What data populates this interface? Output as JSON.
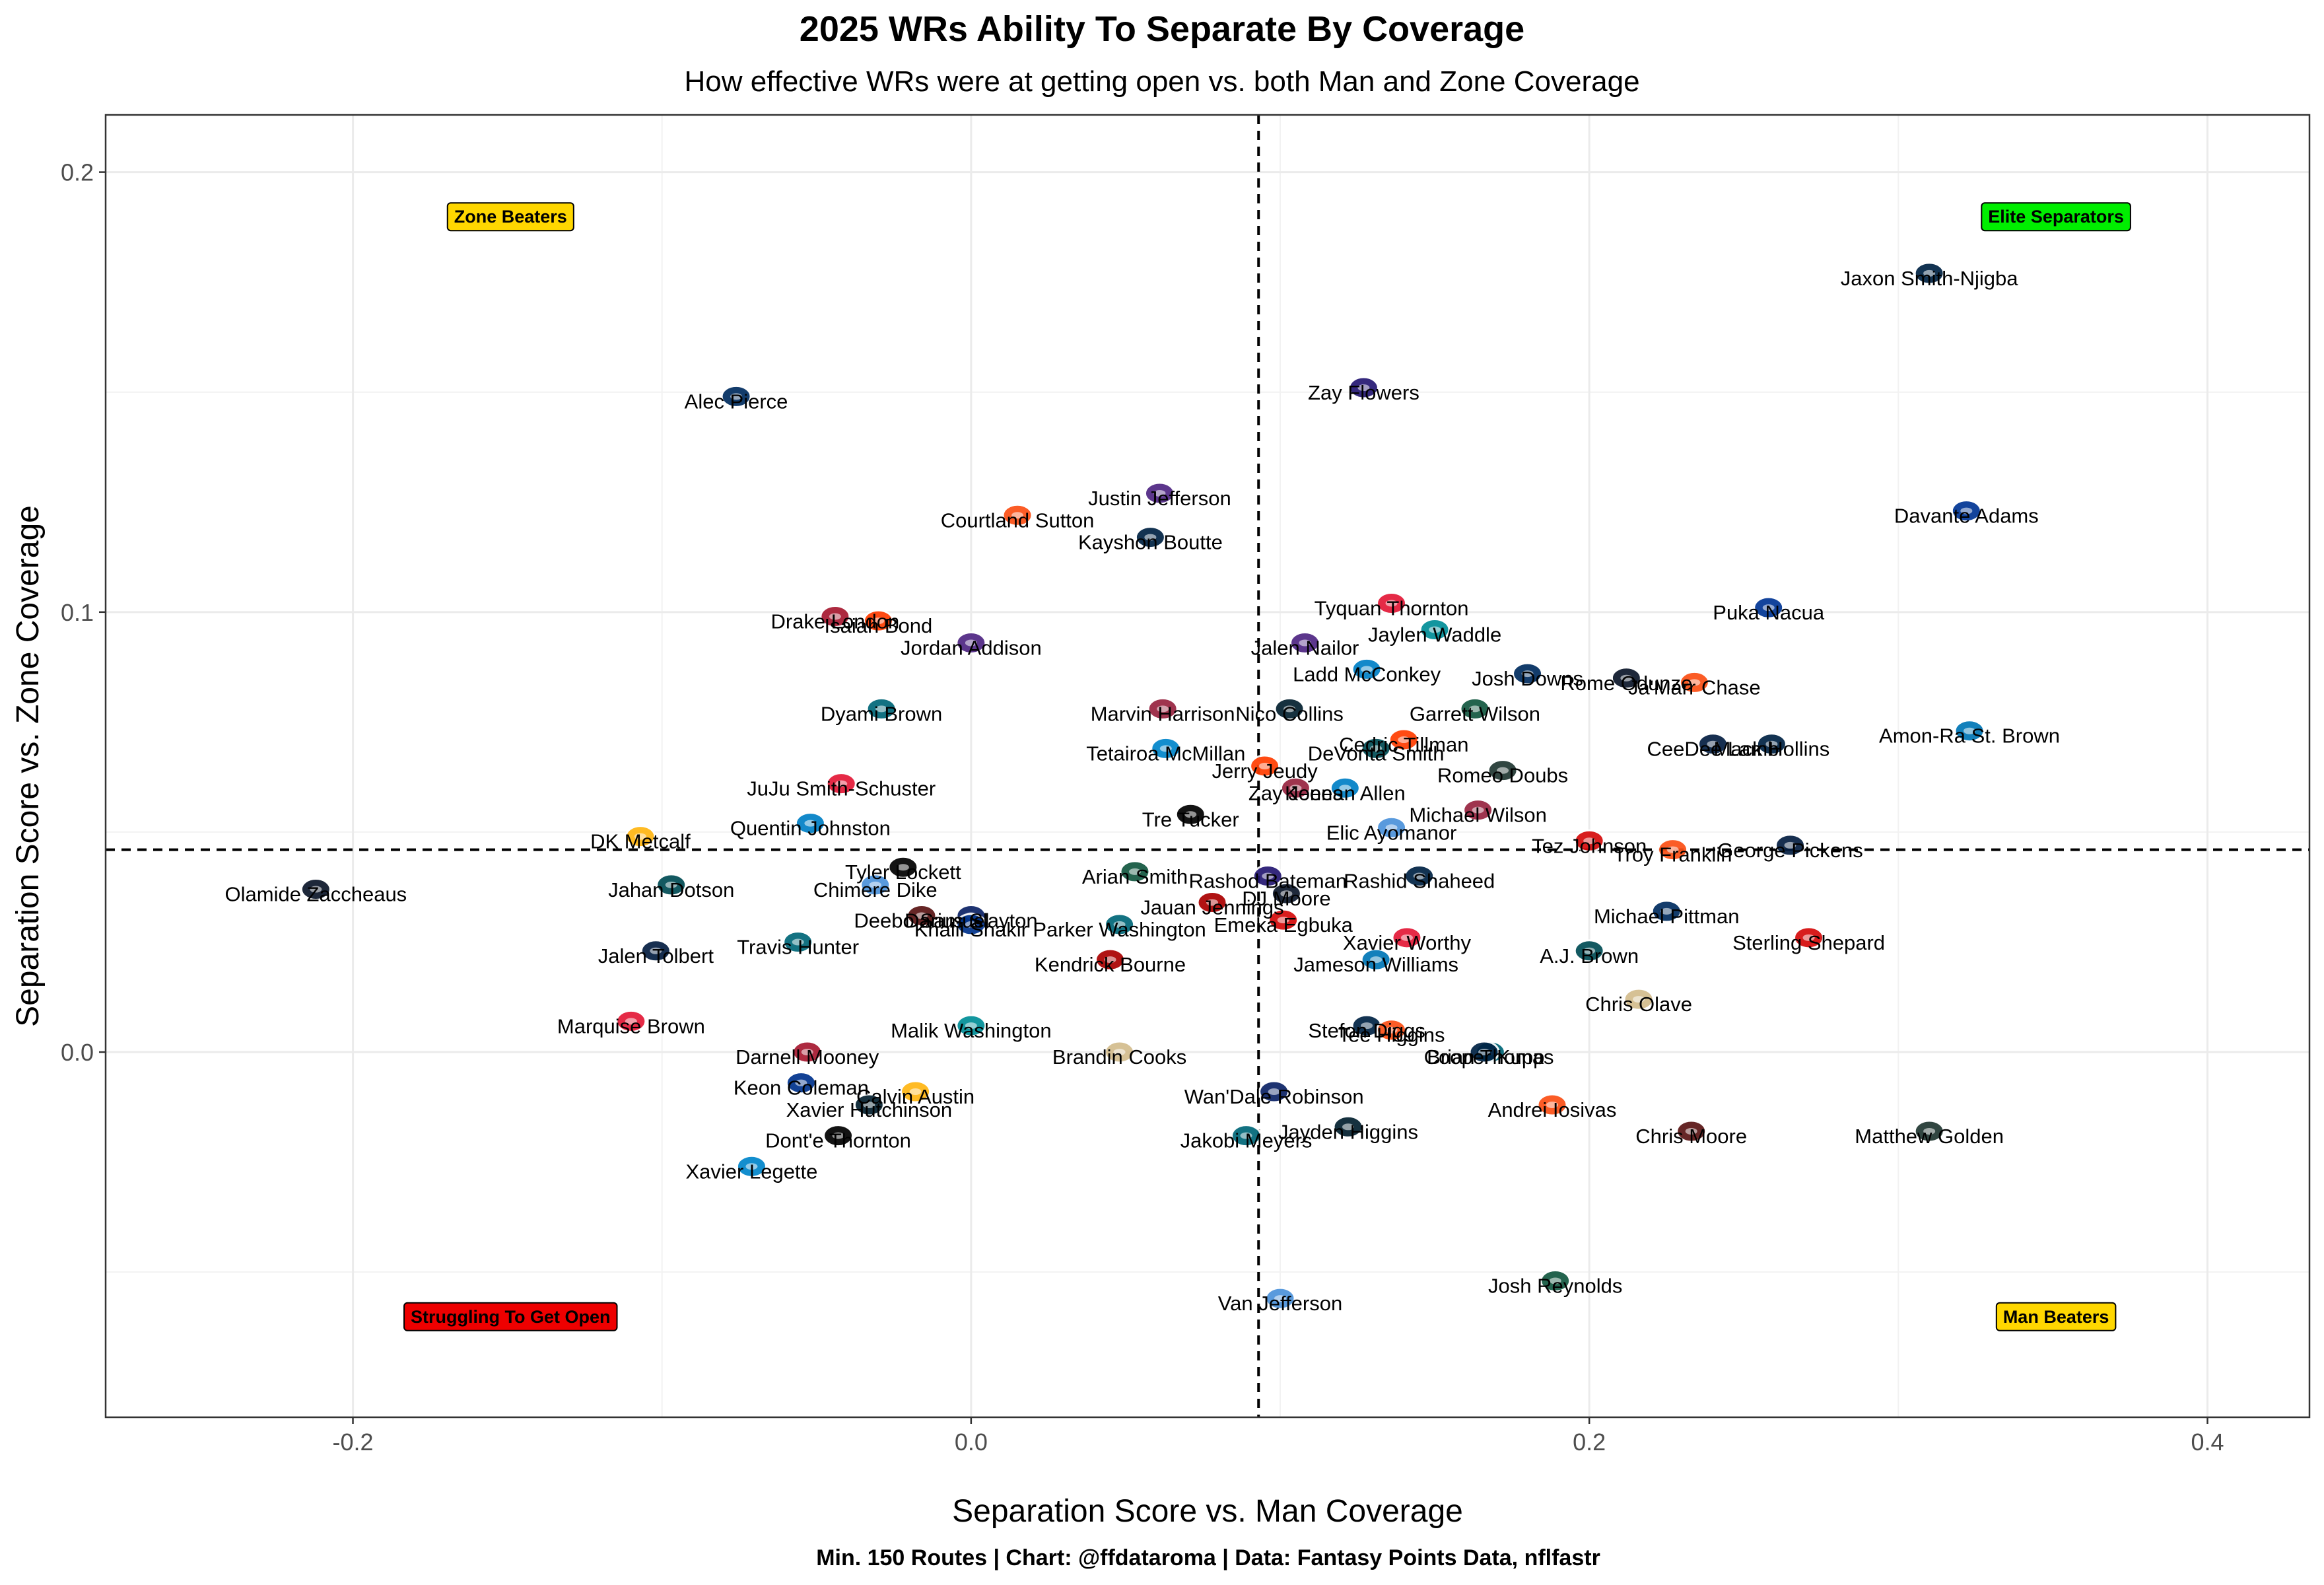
{
  "chart_data": {
    "type": "scatter",
    "title": "2025 WRs Ability To Separate By Coverage",
    "subtitle": "How effective WRs were at getting open vs. both Man and Zone Coverage",
    "xlabel": "Separation Score vs. Man Coverage",
    "ylabel": "Separation Score vs. Zone Coverage",
    "caption": "Min. 150 Routes | Chart: @ffdataroma | Data: Fantasy Points Data, nflfastr",
    "xlim": [
      -0.28,
      0.433
    ],
    "ylim": [
      -0.083,
      0.213
    ],
    "x_ticks": [
      {
        "value": -0.2,
        "label": "-0.2"
      },
      {
        "value": 0.0,
        "label": "0.0"
      },
      {
        "value": 0.2,
        "label": "0.2"
      },
      {
        "value": 0.4,
        "label": "0.4"
      }
    ],
    "y_ticks": [
      {
        "value": 0.0,
        "label": "0.0"
      },
      {
        "value": 0.1,
        "label": "0.1"
      },
      {
        "value": 0.2,
        "label": "0.2"
      }
    ],
    "grid": true,
    "ref_lines": {
      "x": 0.093,
      "y": 0.046
    },
    "quadrant_labels": [
      {
        "text": "Zone Beaters",
        "x": -0.149,
        "y": 0.19,
        "color": "#ffd700"
      },
      {
        "text": "Elite Separators",
        "x": 0.351,
        "y": 0.19,
        "color": "#00ee00"
      },
      {
        "text": "Struggling To Get Open",
        "x": -0.149,
        "y": -0.06,
        "color": "#ee0000"
      },
      {
        "text": "Man Beaters",
        "x": 0.351,
        "y": -0.06,
        "color": "#ffd700"
      }
    ],
    "team_colors": {
      "SEA": "#002244",
      "IND": "#002c5f",
      "BAL": "#241773",
      "LAR": "#003594",
      "DEN": "#fb4f14",
      "MIN": "#4f2683",
      "NE": "#002244",
      "DET": "#0076b6",
      "ATL": "#a71930",
      "CLE": "#ff3c00",
      "JAX": "#006778",
      "ARI": "#97233f",
      "HOU": "#03202f",
      "NYJ": "#125740",
      "CHI": "#0b162a",
      "CIN": "#fb4f14",
      "DAL": "#041e42",
      "KC": "#e31837",
      "CAR": "#0085ca",
      "SF": "#aa0000",
      "LV": "#000000",
      "TB": "#d50a0a",
      "PIT": "#ffb612",
      "GB": "#203731",
      "TEN": "#4b92db",
      "LAC": "#0080c6",
      "PHI": "#004c54",
      "WAS": "#5a1414",
      "NYG": "#0b2265",
      "MIA": "#008e97",
      "BUF": "#00338d",
      "NO": "#d3bc8d"
    },
    "points": [
      {
        "name": "Jaxon Smith-Njigba",
        "x": 0.31,
        "y": 0.177,
        "team": "SEA"
      },
      {
        "name": "Alec Pierce",
        "x": -0.076,
        "y": 0.149,
        "team": "IND"
      },
      {
        "name": "Zay Flowers",
        "x": 0.127,
        "y": 0.151,
        "team": "BAL"
      },
      {
        "name": "Davante Adams",
        "x": 0.322,
        "y": 0.123,
        "team": "LAR"
      },
      {
        "name": "Courtland Sutton",
        "x": 0.015,
        "y": 0.122,
        "team": "DEN"
      },
      {
        "name": "Justin Jefferson",
        "x": 0.061,
        "y": 0.127,
        "team": "MIN"
      },
      {
        "name": "Kayshon Boutte",
        "x": 0.058,
        "y": 0.117,
        "team": "NE"
      },
      {
        "name": "Tyquan Thornton",
        "x": 0.136,
        "y": 0.102,
        "team": "KC"
      },
      {
        "name": "Puka Nacua",
        "x": 0.258,
        "y": 0.101,
        "team": "LAR"
      },
      {
        "name": "Drake London",
        "x": -0.044,
        "y": 0.099,
        "team": "ATL"
      },
      {
        "name": "Isaiah Bond",
        "x": -0.03,
        "y": 0.098,
        "team": "CLE"
      },
      {
        "name": "Jaylen Waddle",
        "x": 0.15,
        "y": 0.096,
        "team": "MIA"
      },
      {
        "name": "Jalen Nailor",
        "x": 0.108,
        "y": 0.093,
        "team": "MIN"
      },
      {
        "name": "Jordan Addison",
        "x": 0.0,
        "y": 0.093,
        "team": "MIN"
      },
      {
        "name": "Ladd McConkey",
        "x": 0.128,
        "y": 0.087,
        "team": "LAC"
      },
      {
        "name": "Josh Downs",
        "x": 0.18,
        "y": 0.086,
        "team": "IND"
      },
      {
        "name": "Rome Odunze",
        "x": 0.212,
        "y": 0.085,
        "team": "CHI"
      },
      {
        "name": "Ja'Marr Chase",
        "x": 0.234,
        "y": 0.084,
        "team": "CIN"
      },
      {
        "name": "Garrett Wilson",
        "x": 0.163,
        "y": 0.078,
        "team": "NYJ"
      },
      {
        "name": "Marvin Harrison",
        "x": 0.062,
        "y": 0.078,
        "team": "ARI"
      },
      {
        "name": "Nico Collins",
        "x": 0.103,
        "y": 0.078,
        "team": "HOU"
      },
      {
        "name": "Dyami Brown",
        "x": -0.029,
        "y": 0.078,
        "team": "JAX"
      },
      {
        "name": "Amon-Ra St. Brown",
        "x": 0.323,
        "y": 0.073,
        "team": "DET"
      },
      {
        "name": "CeeDee Lamb",
        "x": 0.24,
        "y": 0.07,
        "team": "DAL"
      },
      {
        "name": "Mack Hollins",
        "x": 0.259,
        "y": 0.07,
        "team": "NE"
      },
      {
        "name": "Cedric Tillman",
        "x": 0.14,
        "y": 0.071,
        "team": "CLE"
      },
      {
        "name": "DeVonta Smith",
        "x": 0.131,
        "y": 0.069,
        "team": "PHI"
      },
      {
        "name": "Jerry Jeudy",
        "x": 0.095,
        "y": 0.065,
        "team": "CLE"
      },
      {
        "name": "Tetairoa McMillan",
        "x": 0.063,
        "y": 0.069,
        "team": "CAR"
      },
      {
        "name": "Romeo Doubs",
        "x": 0.172,
        "y": 0.064,
        "team": "GB"
      },
      {
        "name": "Zay Jones",
        "x": 0.105,
        "y": 0.06,
        "team": "ARI"
      },
      {
        "name": "Keenan Allen",
        "x": 0.121,
        "y": 0.06,
        "team": "LAC"
      },
      {
        "name": "JuJu Smith-Schuster",
        "x": -0.042,
        "y": 0.061,
        "team": "KC"
      },
      {
        "name": "Michael Wilson",
        "x": 0.164,
        "y": 0.055,
        "team": "ARI"
      },
      {
        "name": "Tre Tucker",
        "x": 0.071,
        "y": 0.054,
        "team": "LV"
      },
      {
        "name": "Quentin Johnston",
        "x": -0.052,
        "y": 0.052,
        "team": "LAC"
      },
      {
        "name": "Elic Ayomanor",
        "x": 0.136,
        "y": 0.051,
        "team": "TEN"
      },
      {
        "name": "Tez Johnson",
        "x": 0.2,
        "y": 0.048,
        "team": "TB"
      },
      {
        "name": "Troy Franklin",
        "x": 0.227,
        "y": 0.046,
        "team": "DEN"
      },
      {
        "name": "George Pickens",
        "x": 0.265,
        "y": 0.047,
        "team": "DAL"
      },
      {
        "name": "DK Metcalf",
        "x": -0.107,
        "y": 0.049,
        "team": "PIT"
      },
      {
        "name": "Tyler Lockett",
        "x": -0.022,
        "y": 0.042,
        "team": "LV"
      },
      {
        "name": "Rashod Bateman",
        "x": 0.096,
        "y": 0.04,
        "team": "BAL"
      },
      {
        "name": "Rashid Shaheed",
        "x": 0.145,
        "y": 0.04,
        "team": "SEA"
      },
      {
        "name": "Arian Smith",
        "x": 0.053,
        "y": 0.041,
        "team": "NYJ"
      },
      {
        "name": "Olamide Zaccheaus",
        "x": -0.212,
        "y": 0.037,
        "team": "CHI"
      },
      {
        "name": "Jahan Dotson",
        "x": -0.097,
        "y": 0.038,
        "team": "PHI"
      },
      {
        "name": "Chimere Dike",
        "x": -0.031,
        "y": 0.038,
        "team": "TEN"
      },
      {
        "name": "DJ Moore",
        "x": 0.102,
        "y": 0.036,
        "team": "CHI"
      },
      {
        "name": "Jauan Jennings",
        "x": 0.078,
        "y": 0.034,
        "team": "SF"
      },
      {
        "name": "Darius Slayton",
        "x": 0.0,
        "y": 0.031,
        "team": "NYG"
      },
      {
        "name": "Deebo Samuel",
        "x": -0.016,
        "y": 0.031,
        "team": "WAS"
      },
      {
        "name": "Michael Pittman",
        "x": 0.225,
        "y": 0.032,
        "team": "IND"
      },
      {
        "name": "Parker Washington",
        "x": 0.048,
        "y": 0.029,
        "team": "JAX"
      },
      {
        "name": "Emeka Egbuka",
        "x": 0.101,
        "y": 0.03,
        "team": "TB"
      },
      {
        "name": "Xavier Worthy",
        "x": 0.141,
        "y": 0.026,
        "team": "KC"
      },
      {
        "name": "Sterling Shepard",
        "x": 0.271,
        "y": 0.026,
        "team": "TB"
      },
      {
        "name": "Travis Hunter",
        "x": -0.056,
        "y": 0.025,
        "team": "JAX"
      },
      {
        "name": "A.J. Brown",
        "x": 0.2,
        "y": 0.023,
        "team": "PHI"
      },
      {
        "name": "Jalen Tolbert",
        "x": -0.102,
        "y": 0.023,
        "team": "DAL"
      },
      {
        "name": "Khalil Shakir",
        "x": 0.0,
        "y": 0.029,
        "team": "BUF"
      },
      {
        "name": "Jameson Williams",
        "x": 0.131,
        "y": 0.021,
        "team": "DET"
      },
      {
        "name": "Kendrick Bourne",
        "x": 0.045,
        "y": 0.021,
        "team": "SF"
      },
      {
        "name": "Chris Olave",
        "x": 0.216,
        "y": 0.012,
        "team": "NO"
      },
      {
        "name": "Stefon Diggs",
        "x": 0.128,
        "y": 0.006,
        "team": "NE"
      },
      {
        "name": "Marquise Brown",
        "x": -0.11,
        "y": 0.007,
        "team": "KC"
      },
      {
        "name": "Malik Washington",
        "x": 0.0,
        "y": 0.006,
        "team": "MIA"
      },
      {
        "name": "Tee Higgins",
        "x": 0.136,
        "y": 0.005,
        "team": "CIN"
      },
      {
        "name": "Brian Thomas",
        "x": 0.168,
        "y": 0.0,
        "team": "JAX"
      },
      {
        "name": "Darnell Mooney",
        "x": -0.053,
        "y": 0.0,
        "team": "ATL"
      },
      {
        "name": "Brandin Cooks",
        "x": 0.048,
        "y": 0.0,
        "team": "NO"
      },
      {
        "name": "Cooper Kupp",
        "x": 0.166,
        "y": 0.0,
        "team": "SEA"
      },
      {
        "name": "Keon Coleman",
        "x": -0.055,
        "y": -0.007,
        "team": "BUF"
      },
      {
        "name": "Calvin Austin",
        "x": -0.018,
        "y": -0.009,
        "team": "PIT"
      },
      {
        "name": "Wan'Dale Robinson",
        "x": 0.098,
        "y": -0.009,
        "team": "NYG"
      },
      {
        "name": "Xavier Hutchinson",
        "x": -0.033,
        "y": -0.012,
        "team": "HOU"
      },
      {
        "name": "Andrei Iosivas",
        "x": 0.188,
        "y": -0.012,
        "team": "CIN"
      },
      {
        "name": "Jayden Higgins",
        "x": 0.122,
        "y": -0.017,
        "team": "HOU"
      },
      {
        "name": "Chris Moore",
        "x": 0.233,
        "y": -0.018,
        "team": "WAS"
      },
      {
        "name": "Matthew Golden",
        "x": 0.31,
        "y": -0.018,
        "team": "GB"
      },
      {
        "name": "Jakobi Meyers",
        "x": 0.089,
        "y": -0.019,
        "team": "JAX"
      },
      {
        "name": "Dont'e Thornton",
        "x": -0.043,
        "y": -0.019,
        "team": "LV"
      },
      {
        "name": "Xavier Legette",
        "x": -0.071,
        "y": -0.026,
        "team": "CAR"
      },
      {
        "name": "Josh Reynolds",
        "x": 0.189,
        "y": -0.052,
        "team": "NYJ"
      },
      {
        "name": "Van Jefferson",
        "x": 0.1,
        "y": -0.056,
        "team": "TEN"
      }
    ]
  }
}
